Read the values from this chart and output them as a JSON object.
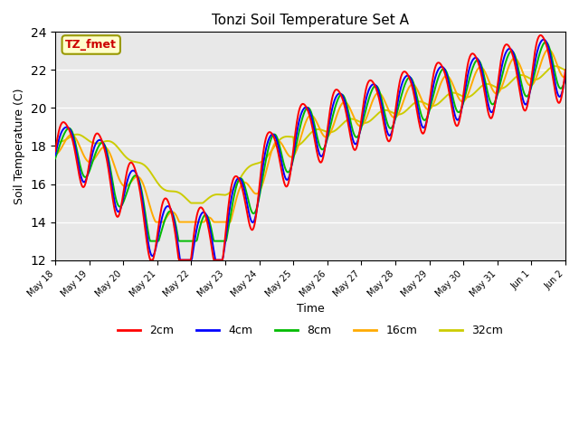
{
  "title": "Tonzi Soil Temperature Set A",
  "xlabel": "Time",
  "ylabel": "Soil Temperature (C)",
  "ylim": [
    12,
    24
  ],
  "yticks": [
    12,
    14,
    16,
    18,
    20,
    22,
    24
  ],
  "annotation_text": "TZ_fmet",
  "annotation_color": "#cc0000",
  "annotation_bg": "#ffffcc",
  "annotation_border": "#999900",
  "colors": {
    "2cm": "#ff0000",
    "4cm": "#0000ff",
    "8cm": "#00bb00",
    "16cm": "#ffaa00",
    "32cm": "#cccc00"
  },
  "legend_labels": [
    "2cm",
    "4cm",
    "8cm",
    "16cm",
    "32cm"
  ],
  "bg_color": "#e8e8e8",
  "x_tick_positions": [
    0,
    1,
    2,
    3,
    4,
    5,
    6,
    7,
    8,
    9,
    10,
    11,
    12,
    13,
    14,
    15
  ],
  "x_tick_labels": [
    "May 18",
    "May 19",
    "May 20",
    "May 21",
    "May 22",
    "May 23",
    "May 24",
    "May 25",
    "May 26",
    "May 27",
    "May 28",
    "May 29",
    "May 30",
    "May 31",
    "Jun 1",
    "Jun 2"
  ]
}
